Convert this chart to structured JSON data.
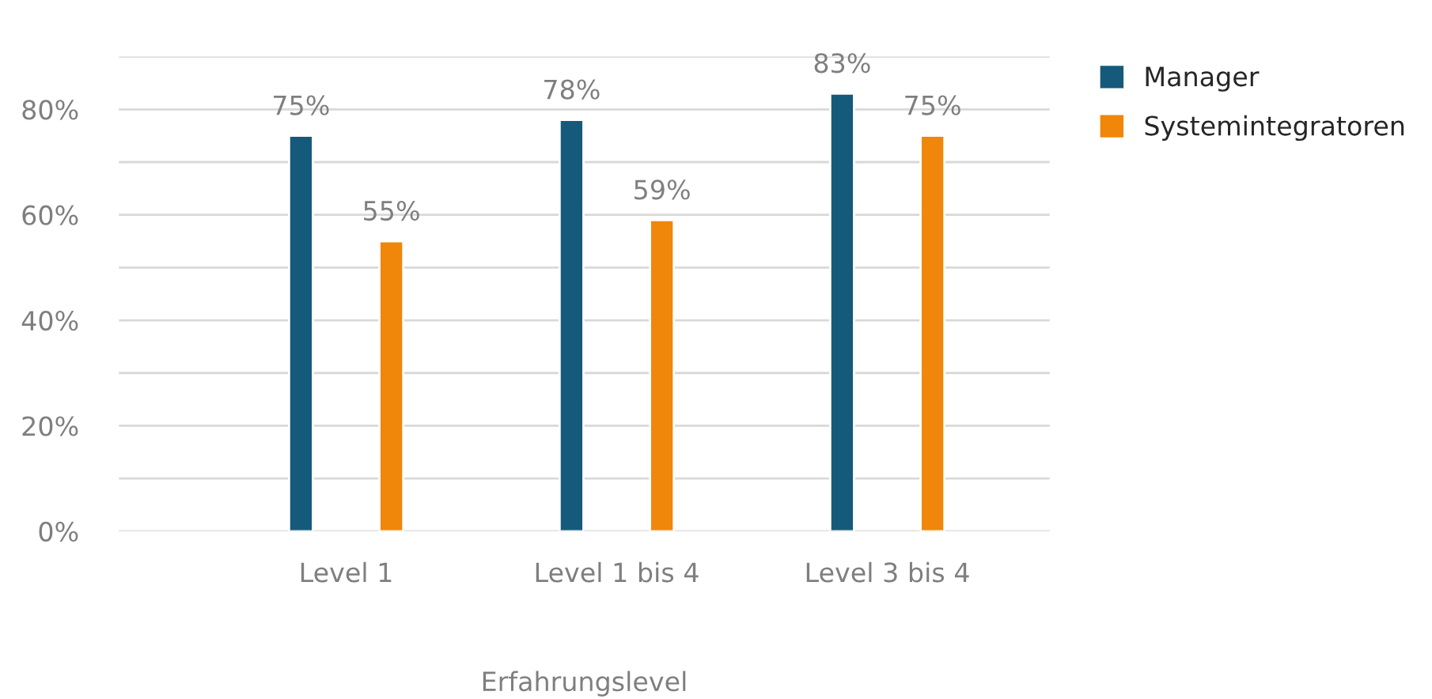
{
  "chart_data": {
    "type": "bar",
    "xlabel": "Erfahrungslevel",
    "categories": [
      "Level 1",
      "Level 1 bis 4",
      "Level 3 bis 4"
    ],
    "series": [
      {
        "name": "Manager",
        "color": "#155a7a",
        "values": [
          75,
          78,
          83
        ],
        "value_labels": [
          "75%",
          "78%",
          "83%"
        ]
      },
      {
        "name": "Systemintegratoren",
        "color": "#f0860a",
        "values": [
          55,
          59,
          75
        ],
        "value_labels": [
          "55%",
          "59%",
          "75%"
        ]
      }
    ],
    "ylim": [
      0,
      90
    ],
    "yticks": [
      {
        "value": 0,
        "label": "0%"
      },
      {
        "value": 10,
        "label": null
      },
      {
        "value": 20,
        "label": "20%"
      },
      {
        "value": 30,
        "label": null
      },
      {
        "value": 40,
        "label": "40%"
      },
      {
        "value": 50,
        "label": null
      },
      {
        "value": 60,
        "label": "60%"
      },
      {
        "value": 70,
        "label": null
      },
      {
        "value": 80,
        "label": "80%"
      },
      {
        "value": 90,
        "label": null
      }
    ],
    "grid": "y",
    "legend": "right"
  }
}
